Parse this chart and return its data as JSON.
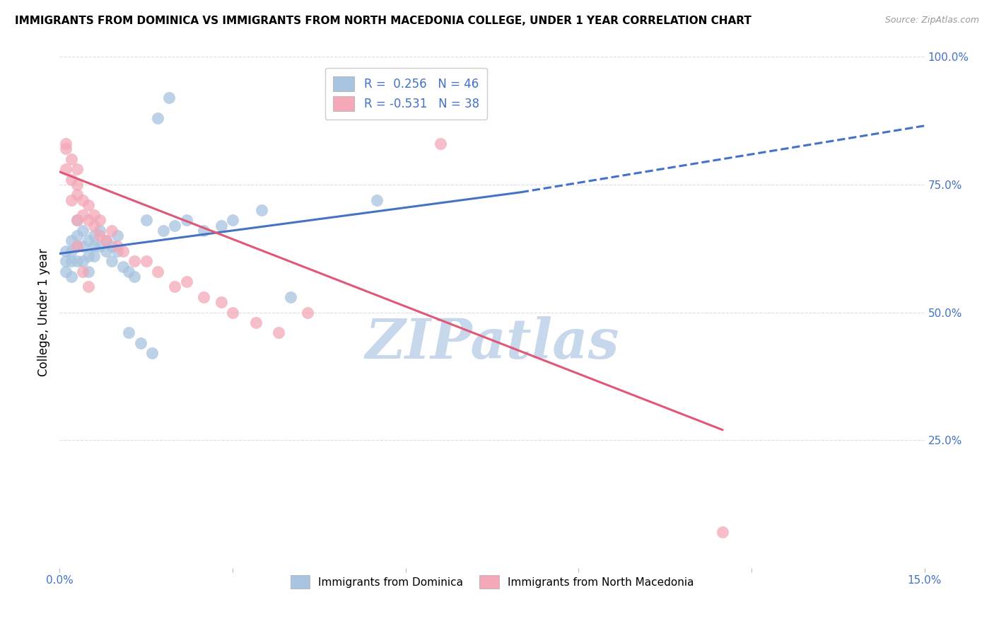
{
  "title": "IMMIGRANTS FROM DOMINICA VS IMMIGRANTS FROM NORTH MACEDONIA COLLEGE, UNDER 1 YEAR CORRELATION CHART",
  "source": "Source: ZipAtlas.com",
  "ylabel": "College, Under 1 year",
  "xlim": [
    0.0,
    0.15
  ],
  "ylim": [
    0.0,
    1.0
  ],
  "xticks": [
    0.0,
    0.03,
    0.06,
    0.09,
    0.12,
    0.15
  ],
  "xticklabels": [
    "0.0%",
    "",
    "",
    "",
    "",
    "15.0%"
  ],
  "yticks": [
    0.0,
    0.25,
    0.5,
    0.75,
    1.0
  ],
  "yticklabels_right": [
    "",
    "25.0%",
    "50.0%",
    "75.0%",
    "100.0%"
  ],
  "legend_r1": "R =  0.256   N = 46",
  "legend_r2": "R = -0.531   N = 38",
  "dominica_color": "#a8c4e0",
  "macedonia_color": "#f4a8b8",
  "dominica_line_color": "#4472c4",
  "macedonia_line_color": "#e05878",
  "watermark": "ZIPatlas",
  "watermark_color": "#c8d8ec",
  "dominica_x": [
    0.001,
    0.001,
    0.001,
    0.002,
    0.002,
    0.002,
    0.002,
    0.003,
    0.003,
    0.003,
    0.003,
    0.004,
    0.004,
    0.004,
    0.005,
    0.005,
    0.005,
    0.006,
    0.006,
    0.006,
    0.007,
    0.007,
    0.008,
    0.008,
    0.009,
    0.009,
    0.01,
    0.01,
    0.011,
    0.012,
    0.013,
    0.015,
    0.018,
    0.02,
    0.022,
    0.025,
    0.028,
    0.03,
    0.035,
    0.04,
    0.012,
    0.014,
    0.016,
    0.055,
    0.017,
    0.019
  ],
  "dominica_y": [
    0.62,
    0.6,
    0.58,
    0.64,
    0.62,
    0.6,
    0.57,
    0.68,
    0.65,
    0.63,
    0.6,
    0.66,
    0.63,
    0.6,
    0.64,
    0.61,
    0.58,
    0.65,
    0.63,
    0.61,
    0.66,
    0.63,
    0.64,
    0.62,
    0.63,
    0.6,
    0.65,
    0.62,
    0.59,
    0.58,
    0.57,
    0.68,
    0.66,
    0.67,
    0.68,
    0.66,
    0.67,
    0.68,
    0.7,
    0.53,
    0.46,
    0.44,
    0.42,
    0.72,
    0.88,
    0.92
  ],
  "macedonia_x": [
    0.001,
    0.001,
    0.002,
    0.002,
    0.003,
    0.003,
    0.003,
    0.004,
    0.004,
    0.005,
    0.005,
    0.006,
    0.006,
    0.007,
    0.007,
    0.008,
    0.009,
    0.01,
    0.011,
    0.013,
    0.015,
    0.017,
    0.02,
    0.022,
    0.025,
    0.028,
    0.03,
    0.034,
    0.038,
    0.043,
    0.001,
    0.002,
    0.003,
    0.004,
    0.005,
    0.066,
    0.115,
    0.003
  ],
  "macedonia_y": [
    0.78,
    0.82,
    0.8,
    0.76,
    0.75,
    0.73,
    0.78,
    0.72,
    0.69,
    0.71,
    0.68,
    0.69,
    0.67,
    0.65,
    0.68,
    0.64,
    0.66,
    0.63,
    0.62,
    0.6,
    0.6,
    0.58,
    0.55,
    0.56,
    0.53,
    0.52,
    0.5,
    0.48,
    0.46,
    0.5,
    0.83,
    0.72,
    0.68,
    0.58,
    0.55,
    0.83,
    0.07,
    0.63
  ],
  "dom_line_x0": 0.0,
  "dom_line_y0": 0.615,
  "dom_line_x1": 0.08,
  "dom_line_y1": 0.735,
  "dom_line_dash_x1": 0.15,
  "dom_line_dash_y1": 0.865,
  "mac_line_x0": 0.0,
  "mac_line_y0": 0.775,
  "mac_line_x1": 0.115,
  "mac_line_y1": 0.27,
  "figsize": [
    14.06,
    8.92
  ],
  "dpi": 100
}
